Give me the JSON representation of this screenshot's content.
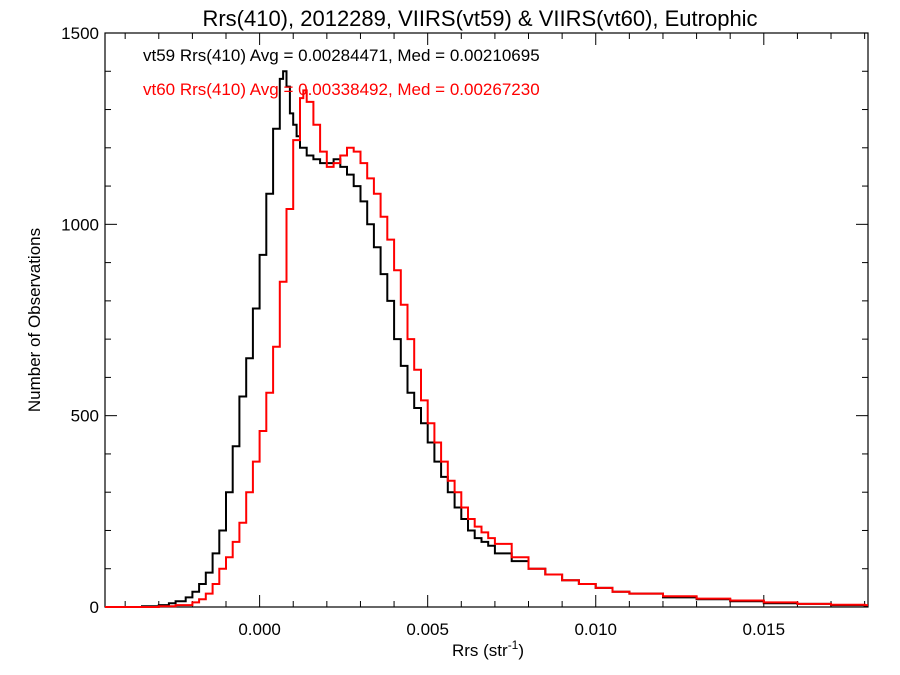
{
  "chart_data": {
    "type": "line",
    "title": "Rrs(410), 2012289, VIIRS(vt59) & VIIRS(vt60), Eutrophic",
    "xlabel": "Rrs (str",
    "xlabel_sup": "-1",
    "xlabel_close": ")",
    "ylabel": "Number of Observations",
    "xlim": [
      -0.0046,
      0.0181
    ],
    "ylim": [
      0,
      1500
    ],
    "xticks": [
      0.0,
      0.005,
      0.01,
      0.015
    ],
    "xtick_labels": [
      "0.000",
      "0.005",
      "0.010",
      "0.015"
    ],
    "yticks": [
      0,
      500,
      1000,
      1500
    ],
    "ytick_labels": [
      "0",
      "500",
      "1000",
      "1500"
    ],
    "grid": false,
    "legend_position": "top-left",
    "series": [
      {
        "name": "vt59",
        "label": "vt59 Rrs(410) Avg = 0.00284471, Med = 0.00210695",
        "color": "#000000",
        "x": [
          -0.0046,
          -0.004,
          -0.0035,
          -0.003,
          -0.0027,
          -0.0025,
          -0.0022,
          -0.002,
          -0.0018,
          -0.0016,
          -0.0014,
          -0.0012,
          -0.001,
          -0.0008,
          -0.0006,
          -0.0004,
          -0.0002,
          0.0,
          0.0002,
          0.0004,
          0.0006,
          0.0007,
          0.0008,
          0.0009,
          0.001,
          0.0011,
          0.0012,
          0.0014,
          0.0016,
          0.0018,
          0.002,
          0.0022,
          0.0024,
          0.0026,
          0.0028,
          0.003,
          0.0032,
          0.0034,
          0.0036,
          0.0038,
          0.004,
          0.0042,
          0.0044,
          0.0046,
          0.0048,
          0.005,
          0.0052,
          0.0054,
          0.0056,
          0.0058,
          0.006,
          0.0062,
          0.0064,
          0.0066,
          0.0068,
          0.007,
          0.0075,
          0.008,
          0.0085,
          0.009,
          0.0095,
          0.01,
          0.0105,
          0.011,
          0.012,
          0.013,
          0.014,
          0.015,
          0.016,
          0.017,
          0.018
        ],
        "y": [
          0,
          0,
          2,
          5,
          10,
          15,
          25,
          40,
          60,
          90,
          140,
          200,
          300,
          420,
          550,
          650,
          780,
          920,
          1080,
          1250,
          1380,
          1400,
          1360,
          1290,
          1260,
          1230,
          1200,
          1180,
          1170,
          1160,
          1160,
          1170,
          1150,
          1130,
          1100,
          1060,
          1000,
          940,
          870,
          800,
          700,
          630,
          560,
          520,
          480,
          430,
          380,
          340,
          300,
          260,
          230,
          200,
          180,
          170,
          160,
          140,
          120,
          100,
          85,
          70,
          60,
          50,
          40,
          35,
          25,
          20,
          15,
          10,
          8,
          5,
          3
        ]
      },
      {
        "name": "vt60",
        "label": "vt60 Rrs(410) Avg = 0.00338492, Med = 0.00267230",
        "color": "#ff0000",
        "x": [
          -0.0046,
          -0.004,
          -0.0035,
          -0.003,
          -0.0025,
          -0.002,
          -0.0018,
          -0.0016,
          -0.0014,
          -0.0012,
          -0.001,
          -0.0008,
          -0.0006,
          -0.0004,
          -0.0002,
          0.0,
          0.0002,
          0.0004,
          0.0006,
          0.0008,
          0.001,
          0.0012,
          0.0013,
          0.0014,
          0.0016,
          0.0018,
          0.002,
          0.0022,
          0.0024,
          0.0026,
          0.0028,
          0.003,
          0.0032,
          0.0034,
          0.0036,
          0.0038,
          0.004,
          0.0042,
          0.0044,
          0.0046,
          0.0048,
          0.005,
          0.0052,
          0.0054,
          0.0056,
          0.0058,
          0.006,
          0.0062,
          0.0064,
          0.0066,
          0.0068,
          0.007,
          0.0075,
          0.008,
          0.0085,
          0.009,
          0.0095,
          0.01,
          0.0105,
          0.011,
          0.012,
          0.013,
          0.014,
          0.015,
          0.016,
          0.017,
          0.018
        ],
        "y": [
          0,
          0,
          0,
          2,
          5,
          12,
          20,
          35,
          60,
          100,
          130,
          170,
          220,
          300,
          380,
          460,
          560,
          680,
          850,
          1040,
          1220,
          1330,
          1350,
          1320,
          1260,
          1190,
          1150,
          1160,
          1180,
          1200,
          1190,
          1160,
          1120,
          1080,
          1020,
          960,
          880,
          790,
          700,
          620,
          540,
          480,
          430,
          380,
          330,
          300,
          260,
          230,
          210,
          195,
          180,
          165,
          130,
          100,
          85,
          70,
          60,
          50,
          40,
          35,
          28,
          22,
          17,
          12,
          8,
          6,
          5
        ]
      }
    ]
  }
}
